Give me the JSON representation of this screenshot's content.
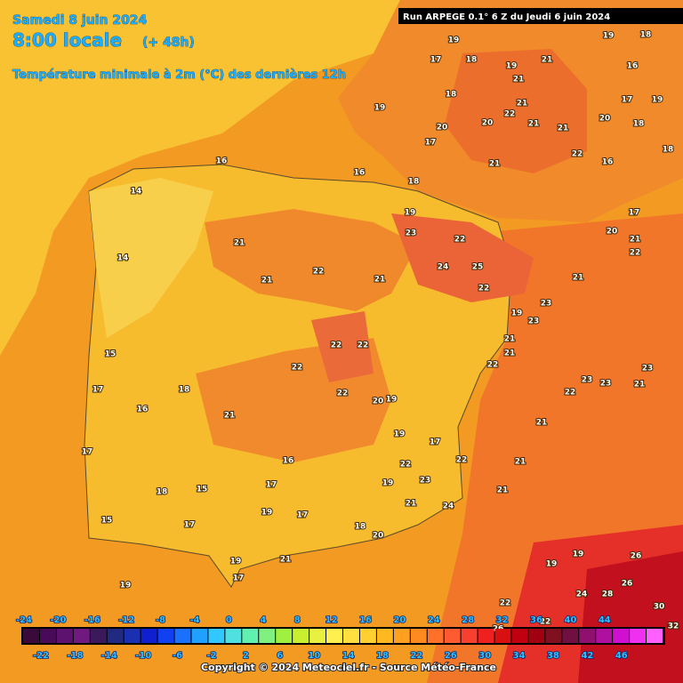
{
  "header": {
    "date": "Samedi 8 juin 2024",
    "time": "8:00 locale",
    "lead": "(+ 48h)",
    "parameter": "Température minimale à 2m (°C) des dernières 12h",
    "run": "Run ARPEGE 0.1° 6 Z du Jeudi 6 juin 2024"
  },
  "map_values": [
    19,
    17,
    18,
    19,
    21,
    21,
    19,
    18,
    20,
    20,
    22,
    21,
    21,
    21,
    21,
    22,
    17,
    18,
    16,
    16,
    14,
    21,
    22,
    21,
    19,
    23,
    22,
    25,
    22,
    24,
    21,
    22,
    22,
    22,
    22,
    21,
    18,
    16,
    17,
    17,
    15,
    14,
    19,
    21,
    19,
    21,
    21,
    21,
    23,
    23,
    22,
    23,
    21,
    21,
    22,
    22,
    23,
    24,
    22,
    26,
    26,
    30,
    31,
    32,
    28,
    24,
    26,
    19,
    19,
    22,
    22,
    21,
    22,
    20,
    21,
    23,
    19,
    18,
    16,
    19,
    18,
    20,
    17,
    16,
    18,
    17,
    19,
    21,
    23,
    20,
    19,
    17,
    19,
    19,
    16,
    17,
    15,
    18,
    15,
    17,
    17,
    18,
    20,
    21,
    17,
    19
  ],
  "legend": {
    "top_labels": [
      -24,
      -20,
      -16,
      -12,
      -8,
      -4,
      0,
      4,
      8,
      12,
      16,
      20,
      24,
      28,
      32,
      36,
      40,
      44
    ],
    "bottom_labels": [
      -22,
      -18,
      -14,
      -10,
      -6,
      -2,
      2,
      6,
      10,
      14,
      18,
      22,
      26,
      30,
      34,
      38,
      42,
      46
    ]
  },
  "footer": "Copyright © 2024 Meteociel.fr - Source Météo-France"
}
